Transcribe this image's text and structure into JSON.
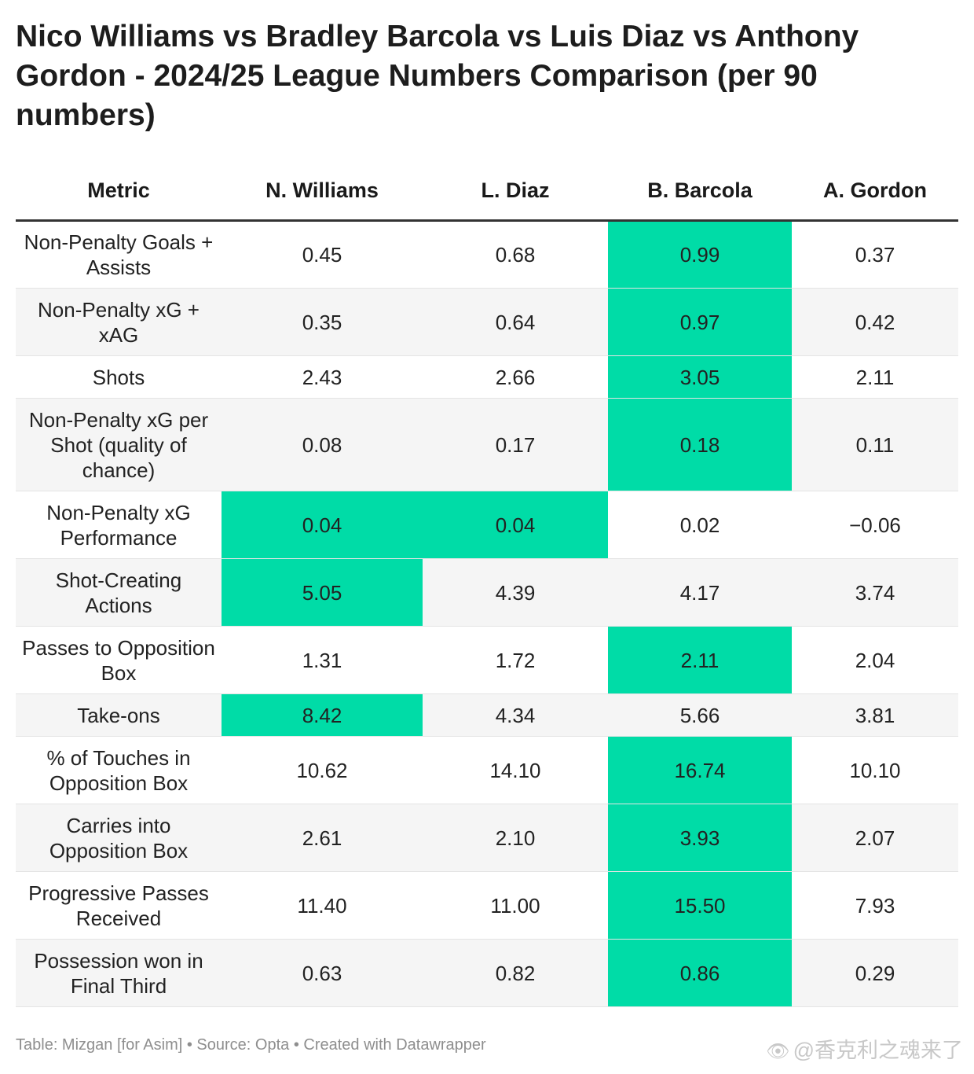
{
  "title": "Nico Williams vs Bradley Barcola vs Luis Diaz vs Anthony Gordon - 2024/25 League Numbers Comparison (per 90 numbers)",
  "chart_data": {
    "type": "table",
    "columns": [
      "Metric",
      "N. Williams",
      "L. Diaz",
      "B. Barcola",
      "A. Gordon"
    ],
    "highlight_color": "#00dca7",
    "rows": [
      {
        "metric": "Non-Penalty Goals + Assists",
        "values": [
          "0.45",
          "0.68",
          "0.99",
          "0.37"
        ],
        "highlight": [
          false,
          false,
          true,
          false
        ]
      },
      {
        "metric": "Non-Penalty xG + xAG",
        "values": [
          "0.35",
          "0.64",
          "0.97",
          "0.42"
        ],
        "highlight": [
          false,
          false,
          true,
          false
        ]
      },
      {
        "metric": "Shots",
        "values": [
          "2.43",
          "2.66",
          "3.05",
          "2.11"
        ],
        "highlight": [
          false,
          false,
          true,
          false
        ]
      },
      {
        "metric": "Non-Penalty xG per Shot (quality of chance)",
        "values": [
          "0.08",
          "0.17",
          "0.18",
          "0.11"
        ],
        "highlight": [
          false,
          false,
          true,
          false
        ]
      },
      {
        "metric": "Non-Penalty xG Performance",
        "values": [
          "0.04",
          "0.04",
          "0.02",
          "−0.06"
        ],
        "highlight": [
          true,
          true,
          false,
          false
        ]
      },
      {
        "metric": "Shot-Creating Actions",
        "values": [
          "5.05",
          "4.39",
          "4.17",
          "3.74"
        ],
        "highlight": [
          true,
          false,
          false,
          false
        ]
      },
      {
        "metric": "Passes to Opposition Box",
        "values": [
          "1.31",
          "1.72",
          "2.11",
          "2.04"
        ],
        "highlight": [
          false,
          false,
          true,
          false
        ]
      },
      {
        "metric": "Take-ons",
        "values": [
          "8.42",
          "4.34",
          "5.66",
          "3.81"
        ],
        "highlight": [
          true,
          false,
          false,
          false
        ]
      },
      {
        "metric": "% of Touches in Opposition Box",
        "values": [
          "10.62",
          "14.10",
          "16.74",
          "10.10"
        ],
        "highlight": [
          false,
          false,
          true,
          false
        ]
      },
      {
        "metric": "Carries into Opposition Box",
        "values": [
          "2.61",
          "2.10",
          "3.93",
          "2.07"
        ],
        "highlight": [
          false,
          false,
          true,
          false
        ]
      },
      {
        "metric": "Progressive Passes Received",
        "values": [
          "11.40",
          "11.00",
          "15.50",
          "7.93"
        ],
        "highlight": [
          false,
          false,
          true,
          false
        ]
      },
      {
        "metric": "Possession won in Final Third",
        "values": [
          "0.63",
          "0.82",
          "0.86",
          "0.29"
        ],
        "highlight": [
          false,
          false,
          true,
          false
        ]
      }
    ]
  },
  "footer": "Table: Mizgan [for Asim] • Source: Opta • Created with Datawrapper",
  "watermark": {
    "icon": "weibo-icon",
    "text": "@香克利之魂来了"
  }
}
